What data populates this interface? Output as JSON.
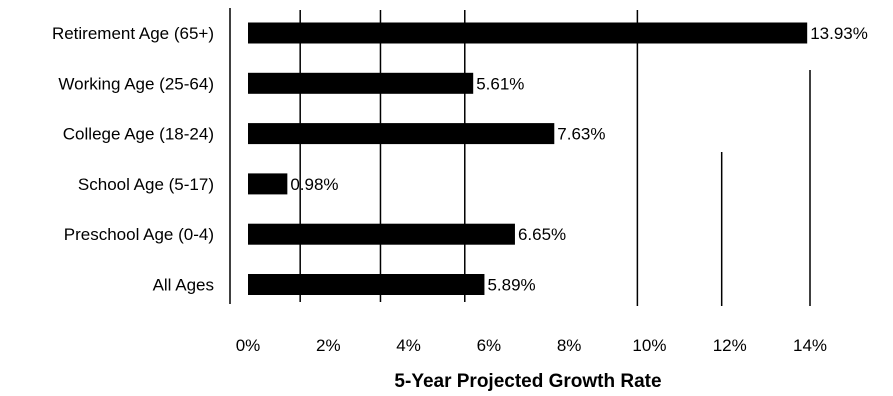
{
  "chart_data": {
    "type": "bar",
    "orientation": "horizontal",
    "categories": [
      "Retirement Age (65+)",
      "Working Age (25-64)",
      "College Age (18-24)",
      "School Age (5-17)",
      "Preschool Age (0-4)",
      "All Ages"
    ],
    "values": [
      13.93,
      5.61,
      7.63,
      0.98,
      6.65,
      5.89
    ],
    "value_labels": [
      "13.93%",
      "5.61%",
      "7.63%",
      "0.98%",
      "6.65%",
      "5.89%"
    ],
    "title": "",
    "xlabel": "5-Year Projected Growth Rate",
    "ylabel": "",
    "xlim": [
      0,
      14
    ],
    "x_ticks": [
      0,
      2,
      4,
      6,
      8,
      10,
      12,
      14
    ],
    "x_tick_labels": [
      "0%",
      "2%",
      "4%",
      "6%",
      "8%",
      "10%",
      "12%",
      "14%"
    ],
    "grid": "vertical lines",
    "legend": "none",
    "bar_color": "#000000"
  }
}
